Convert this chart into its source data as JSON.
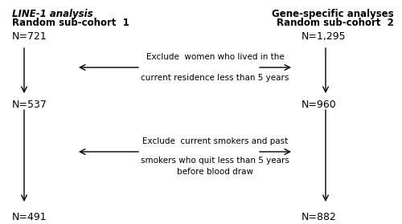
{
  "bg_color": "#ffffff",
  "fig_width": 5.0,
  "fig_height": 2.79,
  "dpi": 100,
  "left_header_line1": "LINE-1 analysis",
  "left_header_line2": "Random sub-cohort  1",
  "right_header_line1": "Gene-specific analyses",
  "right_header_line2": "Random sub-cohort  2",
  "left_n1": "N=721",
  "left_n2": "N=537",
  "left_n3": "N=491",
  "right_n1": "N=1,295",
  "right_n2": "N=960",
  "right_n3": "N=882",
  "box1_line1": "Exclude  women who lived in the",
  "box1_line2": "current residence less than 5 years",
  "box2_line1": "Exclude  current smokers and past",
  "box2_line2": "smokers who quit less than 5 years",
  "box2_line3": "before blood draw",
  "text_fontsize": 7.5,
  "header_fontsize": 8.5,
  "n_fontsize": 9.0
}
